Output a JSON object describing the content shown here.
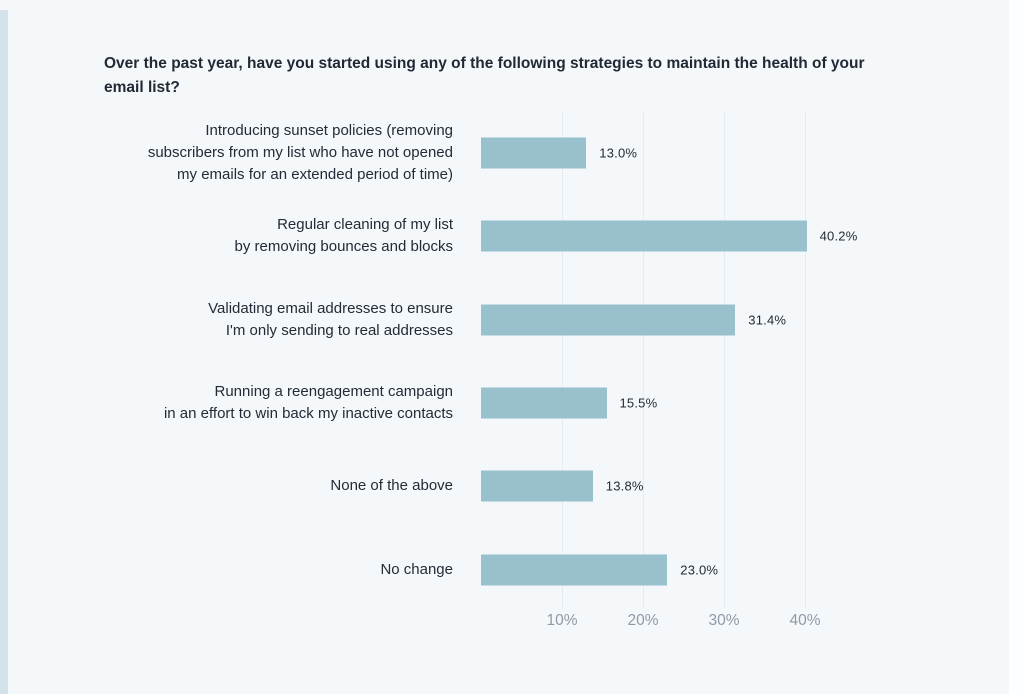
{
  "page": {
    "background_color": "#f5f8fa",
    "left_strip_color": "#d3e2eb",
    "right_strip_color": "#fdfeff"
  },
  "chart_data": {
    "type": "bar",
    "orientation": "horizontal",
    "title": "Over the past year, have you started using any of the following strategies to maintain the health of your email list?",
    "categories": [
      "Introducing sunset policies (removing subscribers from my list who have not opened my emails for an extended period of time)",
      "Regular cleaning of my list by removing bounces and blocks",
      "Validating email addresses to ensure I'm only sending to real addresses",
      "Running a reengagement campaign in an effort to win back my inactive contacts",
      "None of the above",
      "No change"
    ],
    "values": [
      13.0,
      40.2,
      31.4,
      15.5,
      13.8,
      23.0
    ],
    "xlabel": "",
    "ylabel": "",
    "xlim": [
      0,
      44
    ],
    "grid": "vertical-dotted",
    "legend": "none",
    "bar_color": "#98c1cd",
    "title_color": "#1f2833",
    "label_color": "#222b36",
    "value_label_color": "#242b33",
    "tick_color": "#8f99a7",
    "grid_color": "#d7dee6",
    "x_ticks": [
      {
        "value": 10,
        "label": "10%"
      },
      {
        "value": 20,
        "label": "20%"
      },
      {
        "value": 30,
        "label": "30%"
      },
      {
        "value": 40,
        "label": "40%"
      }
    ],
    "rows": [
      {
        "label_lines": [
          "Introducing sunset policies (removing",
          "subscribers from my list who have not opened",
          "my emails for an extended period of time)"
        ],
        "value": 13.0,
        "value_label": "13.0%"
      },
      {
        "label_lines": [
          "Regular cleaning of my list",
          "by removing bounces and blocks"
        ],
        "value": 40.2,
        "value_label": "40.2%"
      },
      {
        "label_lines": [
          "Validating email addresses to ensure",
          "I'm only sending to real addresses"
        ],
        "value": 31.4,
        "value_label": "31.4%"
      },
      {
        "label_lines": [
          "Running a reengagement campaign",
          "in an effort to win back my inactive contacts"
        ],
        "value": 15.5,
        "value_label": "15.5%"
      },
      {
        "label_lines": [
          "None of the above"
        ],
        "value": 13.8,
        "value_label": "13.8%"
      },
      {
        "label_lines": [
          "No change"
        ],
        "value": 23.0,
        "value_label": "23.0%"
      }
    ]
  }
}
